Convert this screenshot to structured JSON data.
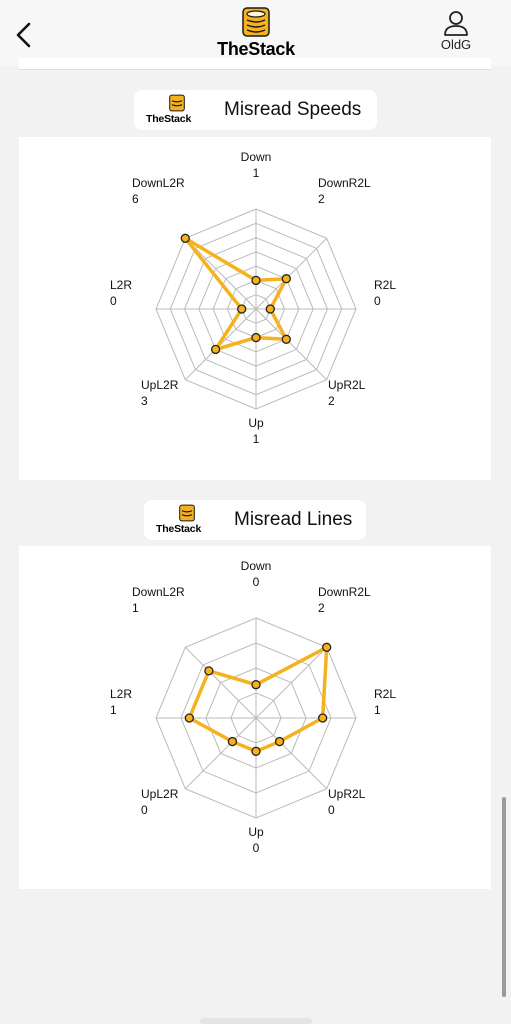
{
  "header": {
    "app_name": "TheStack",
    "user_label": "OldG",
    "back_icon": "chevron-left-icon",
    "user_icon": "person-icon",
    "logo_icon": "stack-logo-icon"
  },
  "colors": {
    "accent": "#f5b21d",
    "grid": "#bbbbbb",
    "point_stroke": "#222222"
  },
  "cards": [
    {
      "logo_text": "TheStack",
      "title": "Misread Speeds"
    },
    {
      "logo_text": "TheStack",
      "title": "Misread Lines"
    }
  ],
  "chart_data": [
    {
      "type": "radar",
      "title": "Misread Speeds",
      "axes": [
        "Down",
        "DownR2L",
        "R2L",
        "UpR2L",
        "Up",
        "UpL2R",
        "L2R",
        "DownL2R"
      ],
      "values": [
        1,
        2,
        0,
        2,
        1,
        3,
        0,
        6
      ],
      "value_labels": [
        "1",
        "2",
        "0",
        "2",
        "1",
        "3",
        "0",
        "6"
      ],
      "range": [
        -1,
        6
      ],
      "grid_rings": 7,
      "color": "#f5b21d"
    },
    {
      "type": "radar",
      "title": "Misread Lines",
      "axes": [
        "Down",
        "DownR2L",
        "R2L",
        "UpR2L",
        "Up",
        "UpL2R",
        "L2R",
        "DownL2R"
      ],
      "values": [
        0,
        2,
        1,
        0,
        0,
        0,
        1,
        1
      ],
      "value_labels": [
        "0",
        "2",
        "1",
        "0",
        "0",
        "0",
        "1",
        "1"
      ],
      "range": [
        -1,
        2
      ],
      "grid_rings": 4,
      "color": "#f5b21d"
    }
  ]
}
